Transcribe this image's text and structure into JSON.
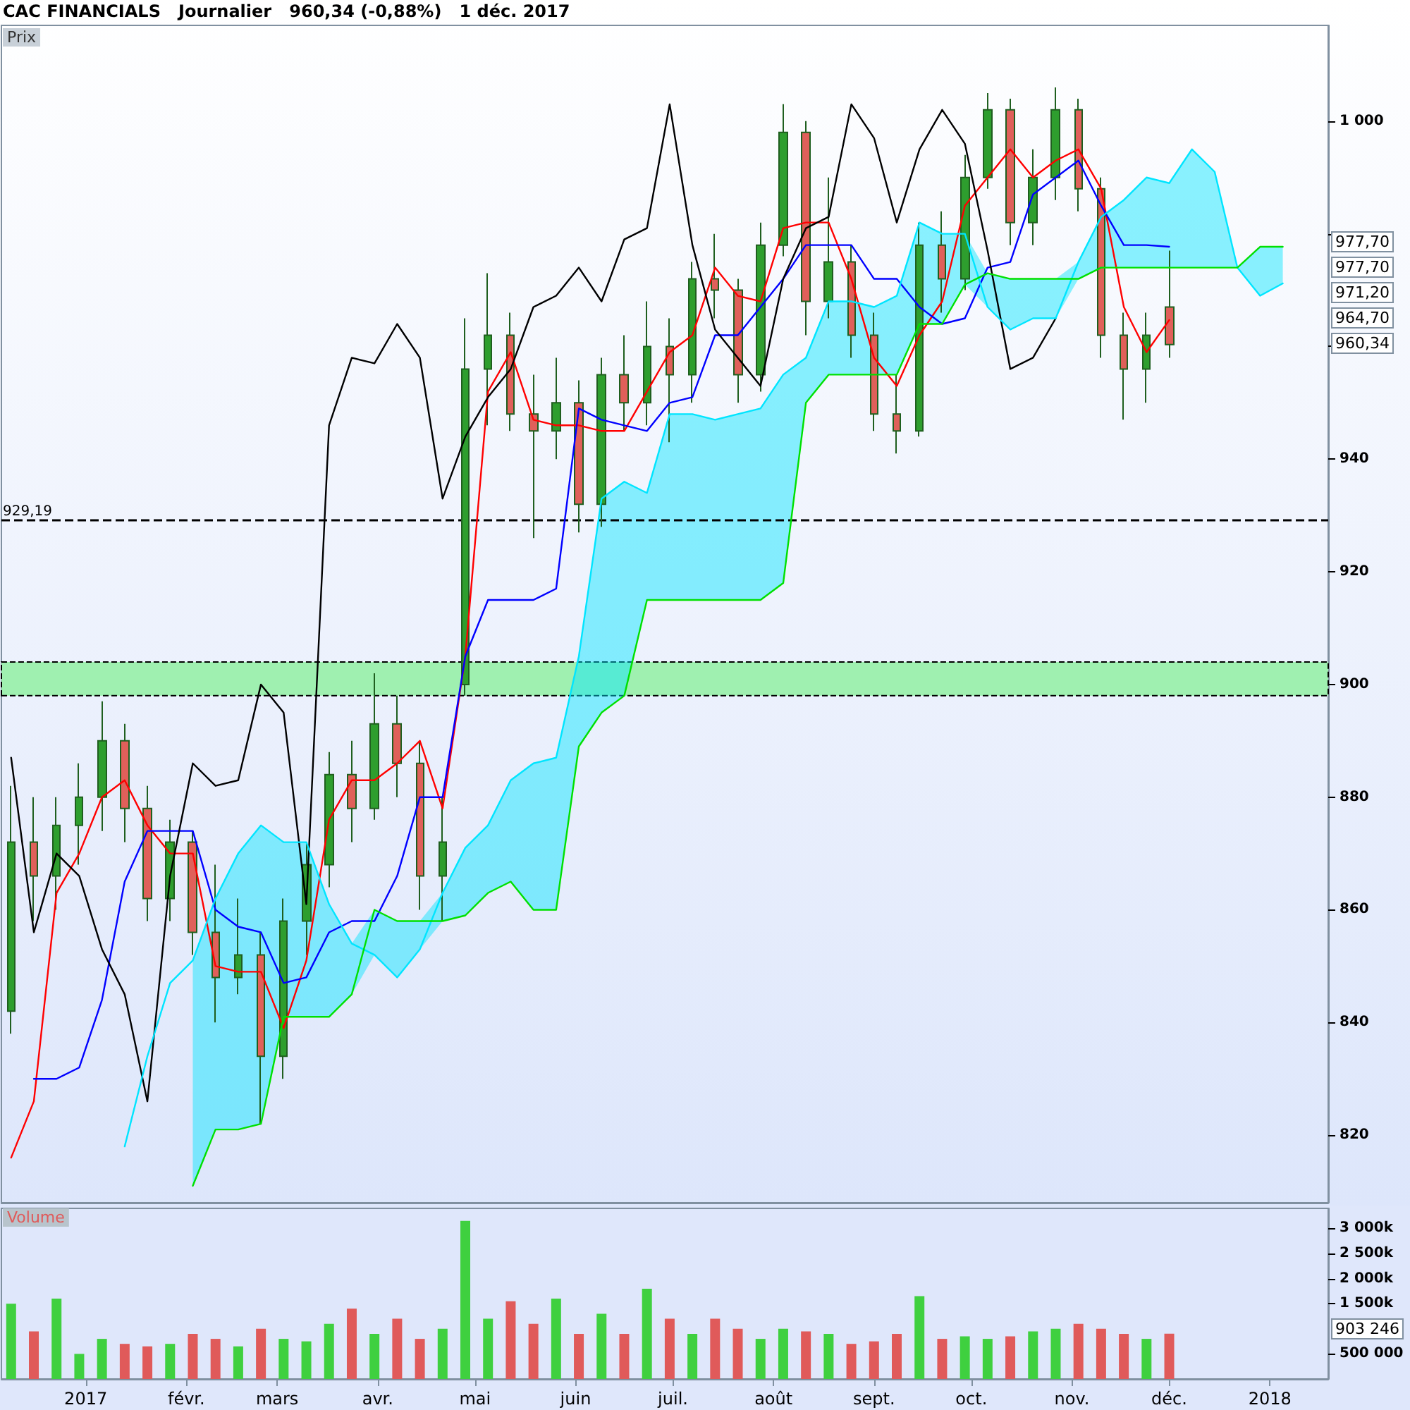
{
  "chart_data": [
    {
      "type": "candlestick",
      "title": "CAC FINANCIALS   Journalier   960,34 (-0,88%)   1 déc. 2017",
      "ylabel": "Prix",
      "x": [
        "2016-12-09",
        "2016-12-16",
        "2016-12-23",
        "2016-12-30",
        "2017-01-06",
        "2017-01-13",
        "2017-01-20",
        "2017-01-27",
        "2017-02-03",
        "2017-02-10",
        "2017-02-17",
        "2017-02-24",
        "2017-03-03",
        "2017-03-10",
        "2017-03-17",
        "2017-03-24",
        "2017-03-31",
        "2017-04-07",
        "2017-04-14",
        "2017-04-21",
        "2017-04-28",
        "2017-05-05",
        "2017-05-12",
        "2017-05-19",
        "2017-05-26",
        "2017-06-02",
        "2017-06-09",
        "2017-06-16",
        "2017-06-23",
        "2017-06-30",
        "2017-07-07",
        "2017-07-14",
        "2017-07-21",
        "2017-07-28",
        "2017-08-04",
        "2017-08-11",
        "2017-08-18",
        "2017-08-25",
        "2017-09-01",
        "2017-09-08",
        "2017-09-15",
        "2017-09-22",
        "2017-09-29",
        "2017-10-06",
        "2017-10-13",
        "2017-10-20",
        "2017-10-27",
        "2017-11-03",
        "2017-11-10",
        "2017-11-17",
        "2017-11-24",
        "2017-12-01"
      ],
      "series": [
        {
          "type": "candlestick",
          "ohlc": [
            [
              842,
              882,
              838,
              872
            ],
            [
              872,
              880,
              858,
              866
            ],
            [
              866,
              880,
              860,
              875
            ],
            [
              875,
              886,
              868,
              880
            ],
            [
              880,
              897,
              874,
              890
            ],
            [
              890,
              893,
              872,
              878
            ],
            [
              878,
              882,
              858,
              862
            ],
            [
              862,
              876,
              858,
              872
            ],
            [
              872,
              874,
              852,
              856
            ],
            [
              856,
              868,
              840,
              848
            ],
            [
              848,
              862,
              845,
              852
            ],
            [
              852,
              856,
              822,
              834
            ],
            [
              834,
              862,
              830,
              858
            ],
            [
              858,
              872,
              852,
              868
            ],
            [
              868,
              888,
              864,
              884
            ],
            [
              884,
              890,
              872,
              878
            ],
            [
              878,
              902,
              876,
              893
            ],
            [
              893,
              898,
              880,
              886
            ],
            [
              886,
              890,
              860,
              866
            ],
            [
              866,
              880,
              858,
              872
            ],
            [
              900,
              965,
              898,
              956
            ],
            [
              956,
              973,
              946,
              962
            ],
            [
              962,
              966,
              945,
              948
            ],
            [
              948,
              955,
              926,
              945
            ],
            [
              945,
              958,
              940,
              950
            ],
            [
              950,
              954,
              927,
              932
            ],
            [
              932,
              958,
              928,
              955
            ],
            [
              955,
              962,
              945,
              950
            ],
            [
              950,
              968,
              946,
              960
            ],
            [
              960,
              965,
              943,
              955
            ],
            [
              955,
              975,
              950,
              972
            ],
            [
              972,
              980,
              965,
              970
            ],
            [
              970,
              972,
              950,
              955
            ],
            [
              955,
              982,
              952,
              978
            ],
            [
              978,
              1003,
              976,
              998
            ],
            [
              998,
              1000,
              962,
              968
            ],
            [
              968,
              990,
              965,
              975
            ],
            [
              975,
              978,
              958,
              962
            ],
            [
              962,
              966,
              945,
              948
            ],
            [
              948,
              955,
              941,
              945
            ],
            [
              945,
              982,
              944,
              978
            ],
            [
              978,
              984,
              966,
              972
            ],
            [
              972,
              994,
              970,
              990
            ],
            [
              990,
              1005,
              988,
              1002
            ],
            [
              1002,
              1004,
              978,
              982
            ],
            [
              982,
              995,
              978,
              990
            ],
            [
              990,
              1006,
              986,
              1002
            ],
            [
              1002,
              1004,
              984,
              988
            ],
            [
              988,
              990,
              958,
              962
            ],
            [
              962,
              966,
              947,
              956
            ],
            [
              956,
              966,
              950,
              962
            ],
            [
              967,
              977,
              958,
              960.34
            ]
          ],
          "colors": [
            "#2e9e2e",
            "#e0605a",
            "#2e9e2e",
            "#2e9e2e",
            "#2e9e2e",
            "#e0605a",
            "#e0605a",
            "#2e9e2e",
            "#e0605a",
            "#e0605a",
            "#2e9e2e",
            "#e0605a",
            "#2e9e2e",
            "#2e9e2e",
            "#2e9e2e",
            "#e0605a",
            "#2e9e2e",
            "#e0605a",
            "#e0605a",
            "#2e9e2e",
            "#2e9e2e",
            "#2e9e2e",
            "#e0605a",
            "#e0605a",
            "#2e9e2e",
            "#e0605a",
            "#2e9e2e",
            "#e0605a",
            "#2e9e2e",
            "#e0605a",
            "#2e9e2e",
            "#e0605a",
            "#e0605a",
            "#2e9e2e",
            "#2e9e2e",
            "#e0605a",
            "#2e9e2e",
            "#e0605a",
            "#e0605a",
            "#e0605a",
            "#2e9e2e",
            "#e0605a",
            "#2e9e2e",
            "#2e9e2e",
            "#e0605a",
            "#2e9e2e",
            "#2e9e2e",
            "#e0605a",
            "#e0605a",
            "#e0605a",
            "#2e9e2e",
            "#e0605a"
          ]
        },
        {
          "type": "line",
          "color": "#ff0000",
          "values": [
            816,
            826,
            863,
            870,
            880,
            883,
            875,
            870,
            870,
            850,
            849,
            849,
            839,
            851,
            876,
            883,
            883,
            886,
            890,
            878,
            905,
            952,
            959,
            947,
            946,
            946,
            945,
            945,
            952,
            959,
            962,
            974,
            969,
            968,
            981,
            982,
            982,
            972,
            958,
            953,
            962,
            968,
            985,
            990,
            995,
            990,
            993,
            995,
            988,
            967,
            959,
            964.7
          ]
        },
        {
          "type": "line",
          "color": "#0000ff",
          "values": [
            null,
            830,
            830,
            832,
            844,
            865,
            874,
            874,
            874,
            860,
            857,
            856,
            847,
            848,
            856,
            858,
            858,
            866,
            880,
            880,
            905,
            915,
            915,
            915,
            917,
            949,
            947,
            946,
            945,
            950,
            951,
            962,
            962,
            967,
            972,
            978,
            978,
            978,
            972,
            972,
            967,
            964,
            965,
            974,
            975,
            987,
            990,
            993,
            985,
            978,
            978,
            977.7
          ]
        },
        {
          "type": "line",
          "color": "#000000",
          "values": [
            887,
            856,
            870,
            866,
            853,
            845,
            826,
            866,
            886,
            882,
            883,
            900,
            895,
            861,
            946,
            958,
            957,
            964,
            958,
            933,
            944,
            951,
            956,
            967,
            969,
            974,
            968,
            979,
            981,
            1003,
            978,
            963,
            958,
            953,
            972,
            981,
            983,
            1003,
            997,
            982,
            995,
            1002,
            996,
            977,
            956,
            958,
            965,
            null,
            null,
            null,
            null,
            null
          ]
        },
        {
          "type": "line",
          "color": "#00e5ff",
          "x": [
            "2017-01-13",
            "2017-01-20",
            "2017-01-27",
            "2017-02-03",
            "2017-02-10",
            "2017-02-17",
            "2017-02-24",
            "2017-03-03",
            "2017-03-10",
            "2017-03-17",
            "2017-03-24",
            "2017-03-31",
            "2017-04-07",
            "2017-04-14",
            "2017-04-21",
            "2017-04-28",
            "2017-05-05",
            "2017-05-12",
            "2017-05-19",
            "2017-05-26",
            "2017-06-02",
            "2017-06-09",
            "2017-06-16",
            "2017-06-23",
            "2017-06-30",
            "2017-07-07",
            "2017-07-14",
            "2017-07-21",
            "2017-07-28",
            "2017-08-04",
            "2017-08-11",
            "2017-08-18",
            "2017-08-25",
            "2017-09-01",
            "2017-09-08",
            "2017-09-15",
            "2017-09-22",
            "2017-09-29",
            "2017-10-06",
            "2017-10-13",
            "2017-10-20",
            "2017-10-27",
            "2017-11-03",
            "2017-11-10",
            "2017-11-17",
            "2017-11-24",
            "2017-12-01",
            "2017-12-08",
            "2017-12-15",
            "2017-12-22",
            "2017-12-29",
            "2018-01-05"
          ],
          "values": [
            818,
            834,
            847,
            851,
            862,
            870,
            875,
            872,
            872,
            861,
            854,
            852,
            848,
            853,
            863,
            871,
            875,
            883,
            886,
            887,
            905,
            933,
            936,
            934,
            948,
            948,
            947,
            948,
            949,
            955,
            958,
            968,
            968,
            967,
            969,
            982,
            980,
            980,
            967,
            963,
            965,
            965,
            975,
            983,
            986,
            990,
            989,
            995,
            991,
            974,
            969,
            971.2
          ],
          "upper": [
            null,
            null,
            null,
            851,
            862,
            870,
            875,
            872,
            872,
            861,
            854,
            860,
            858,
            858,
            863,
            871,
            875,
            883,
            886,
            887,
            905,
            933,
            936,
            934,
            948,
            948,
            947,
            948,
            949,
            955,
            958,
            968,
            968,
            967,
            969,
            982,
            980,
            980,
            973,
            972,
            972,
            972,
            975,
            983,
            986,
            990,
            989,
            995,
            991,
            974,
            977.7,
            977.7
          ],
          "lower": [
            null,
            null,
            null,
            811,
            821,
            821,
            822,
            841,
            841,
            841,
            845,
            852,
            848,
            853,
            858,
            859,
            863,
            865,
            860,
            860,
            889,
            895,
            898,
            915,
            915,
            915,
            915,
            915,
            915,
            918,
            950,
            955,
            955,
            955,
            955,
            964,
            964,
            971,
            967,
            963,
            965,
            965,
            972,
            974,
            974,
            974,
            974,
            974,
            974,
            974,
            969,
            971.2
          ]
        },
        {
          "type": "line",
          "color": "#00e000",
          "x": [
            "2017-02-03",
            "2017-02-10",
            "2017-02-17",
            "2017-02-24",
            "2017-03-03",
            "2017-03-10",
            "2017-03-17",
            "2017-03-24",
            "2017-03-31",
            "2017-04-07",
            "2017-04-14",
            "2017-04-21",
            "2017-04-28",
            "2017-05-05",
            "2017-05-12",
            "2017-05-19",
            "2017-05-26",
            "2017-06-02",
            "2017-06-09",
            "2017-06-16",
            "2017-06-23",
            "2017-06-30",
            "2017-07-07",
            "2017-07-14",
            "2017-07-21",
            "2017-07-28",
            "2017-08-04",
            "2017-08-11",
            "2017-08-18",
            "2017-08-25",
            "2017-09-01",
            "2017-09-08",
            "2017-09-15",
            "2017-09-22",
            "2017-09-29",
            "2017-10-06",
            "2017-10-13",
            "2017-10-20",
            "2017-10-27",
            "2017-11-03",
            "2017-11-10",
            "2017-11-17",
            "2017-11-24",
            "2017-12-01",
            "2017-12-08",
            "2017-12-15",
            "2017-12-22",
            "2017-12-29",
            "2018-01-05"
          ],
          "values": [
            811,
            821,
            821,
            822,
            841,
            841,
            841,
            845,
            860,
            858,
            858,
            858,
            859,
            863,
            865,
            860,
            860,
            889,
            895,
            898,
            915,
            915,
            915,
            915,
            915,
            915,
            918,
            950,
            955,
            955,
            955,
            955,
            964,
            964,
            971,
            973,
            972,
            972,
            972,
            972,
            974,
            974,
            974,
            974,
            974,
            974,
            974,
            977.7,
            977.7
          ]
        }
      ],
      "xlim": [
        "2016-12-06",
        "2018-01-19"
      ],
      "ylim": [
        808,
        1017
      ],
      "yticks": [
        820,
        840,
        860,
        880,
        900,
        920,
        940,
        {
          "value": 960,
          "label": null
        },
        {
          "value": 980,
          "label": null
        },
        {
          "value": 1000,
          "label": "1 000"
        }
      ],
      "tick_labels": "y",
      "marker": "none",
      "ref_lines": [
        {
          "axis": "y",
          "value": 929.19,
          "label": "929,19",
          "line_style": "dashed",
          "color": "#000000"
        }
      ],
      "bands": [
        {
          "axis": "y",
          "from": 898,
          "to": 904,
          "color": "#9ff0b0"
        }
      ],
      "annotations": [
        "977,70",
        "977,70",
        "971,20",
        "964,70",
        "960,34"
      ]
    },
    {
      "type": "bar",
      "title": "Volume",
      "x": [
        "2016-12-09",
        "2016-12-16",
        "2016-12-23",
        "2016-12-30",
        "2017-01-06",
        "2017-01-13",
        "2017-01-20",
        "2017-01-27",
        "2017-02-03",
        "2017-02-10",
        "2017-02-17",
        "2017-02-24",
        "2017-03-03",
        "2017-03-10",
        "2017-03-17",
        "2017-03-24",
        "2017-03-31",
        "2017-04-07",
        "2017-04-14",
        "2017-04-21",
        "2017-04-28",
        "2017-05-05",
        "2017-05-12",
        "2017-05-19",
        "2017-05-26",
        "2017-06-02",
        "2017-06-09",
        "2017-06-16",
        "2017-06-23",
        "2017-06-30",
        "2017-07-07",
        "2017-07-14",
        "2017-07-21",
        "2017-07-28",
        "2017-08-04",
        "2017-08-11",
        "2017-08-18",
        "2017-08-25",
        "2017-09-01",
        "2017-09-08",
        "2017-09-15",
        "2017-09-22",
        "2017-09-29",
        "2017-10-06",
        "2017-10-13",
        "2017-10-20",
        "2017-10-27",
        "2017-11-03",
        "2017-11-10",
        "2017-11-17",
        "2017-11-24",
        "2017-12-01"
      ],
      "values": [
        1500000,
        950000,
        1600000,
        500000,
        800000,
        700000,
        650000,
        700000,
        900000,
        800000,
        650000,
        1000000,
        800000,
        750000,
        1100000,
        1400000,
        900000,
        1200000,
        800000,
        1000000,
        3150000,
        1200000,
        1550000,
        1100000,
        1600000,
        900000,
        1300000,
        900000,
        1800000,
        1200000,
        900000,
        1200000,
        1000000,
        800000,
        1000000,
        950000,
        900000,
        700000,
        750000,
        900000,
        1650000,
        800000,
        850000,
        800000,
        850000,
        950000,
        1000000,
        1100000,
        1000000,
        900000,
        800000,
        903246
      ],
      "colors": [
        "#3fd03f",
        "#e05a5a",
        "#3fd03f",
        "#3fd03f",
        "#3fd03f",
        "#e05a5a",
        "#e05a5a",
        "#3fd03f",
        "#e05a5a",
        "#e05a5a",
        "#3fd03f",
        "#e05a5a",
        "#3fd03f",
        "#3fd03f",
        "#3fd03f",
        "#e05a5a",
        "#3fd03f",
        "#e05a5a",
        "#e05a5a",
        "#3fd03f",
        "#3fd03f",
        "#3fd03f",
        "#e05a5a",
        "#e05a5a",
        "#3fd03f",
        "#e05a5a",
        "#3fd03f",
        "#e05a5a",
        "#3fd03f",
        "#e05a5a",
        "#3fd03f",
        "#e05a5a",
        "#e05a5a",
        "#3fd03f",
        "#3fd03f",
        "#e05a5a",
        "#3fd03f",
        "#e05a5a",
        "#e05a5a",
        "#e05a5a",
        "#3fd03f",
        "#e05a5a",
        "#3fd03f",
        "#3fd03f",
        "#e05a5a",
        "#3fd03f",
        "#3fd03f",
        "#e05a5a",
        "#e05a5a",
        "#e05a5a",
        "#3fd03f",
        "#e05a5a"
      ],
      "xlim": [
        "2016-12-06",
        "2018-01-19"
      ],
      "xticks": [
        {
          "value": "2017-01-01",
          "label": "2017"
        },
        {
          "value": "2017-02-01",
          "label": "févr."
        },
        {
          "value": "2017-03-01",
          "label": "mars"
        },
        {
          "value": "2017-04-01",
          "label": "avr."
        },
        {
          "value": "2017-05-01",
          "label": "mai"
        },
        {
          "value": "2017-06-01",
          "label": "juin"
        },
        {
          "value": "2017-07-01",
          "label": "juil."
        },
        {
          "value": "2017-08-01",
          "label": "août"
        },
        {
          "value": "2017-09-01",
          "label": "sept."
        },
        {
          "value": "2017-10-01",
          "label": "oct."
        },
        {
          "value": "2017-11-01",
          "label": "nov."
        },
        {
          "value": "2017-12-01",
          "label": "déc."
        },
        {
          "value": "2018-01-01",
          "label": "2018"
        }
      ],
      "ylim": [
        0,
        3400000
      ],
      "yticks": [
        {
          "value": 500000,
          "label": "500 000"
        },
        {
          "value": 1500000,
          "label": "1 500k"
        },
        {
          "value": 2000000,
          "label": "2 000k"
        },
        {
          "value": 2500000,
          "label": "2 500k"
        },
        {
          "value": 3000000,
          "label": "3 000k"
        }
      ],
      "annotations": [
        "903 246"
      ]
    }
  ]
}
